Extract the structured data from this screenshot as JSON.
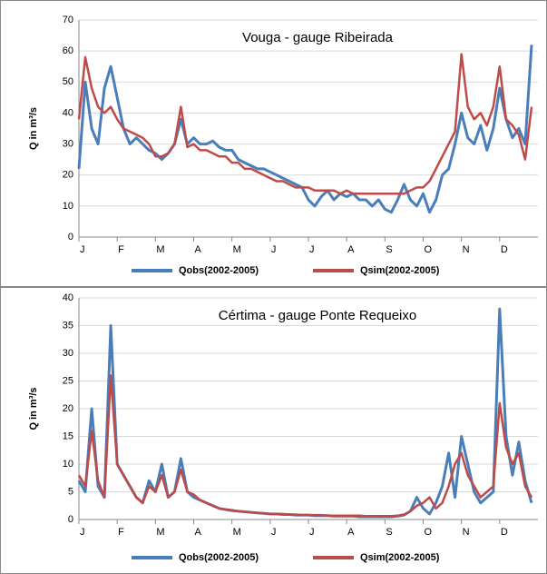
{
  "chart_data": [
    {
      "type": "line",
      "title": "Vouga - gauge Ribeirada",
      "y_label": "Q in m³/s",
      "categories": [
        "J",
        null,
        null,
        null,
        null,
        null,
        "F",
        null,
        null,
        null,
        null,
        null,
        "M",
        null,
        null,
        null,
        null,
        null,
        "A",
        null,
        null,
        null,
        null,
        null,
        "M",
        null,
        null,
        null,
        null,
        null,
        "J",
        null,
        null,
        null,
        null,
        null,
        "J",
        null,
        null,
        null,
        null,
        null,
        "A",
        null,
        null,
        null,
        null,
        null,
        "S",
        null,
        null,
        null,
        null,
        null,
        "O",
        null,
        null,
        null,
        null,
        null,
        "N",
        null,
        null,
        null,
        null,
        null,
        "D",
        null,
        null,
        null,
        null,
        null
      ],
      "series": [
        {
          "name": "Qobs(2002-2005)",
          "color": "#4a7ebb",
          "values": [
            22,
            50,
            35,
            30,
            48,
            55,
            45,
            35,
            30,
            32,
            30,
            28,
            27,
            25,
            27,
            30,
            38,
            30,
            32,
            30,
            30,
            31,
            29,
            28,
            28,
            25,
            24,
            23,
            22,
            22,
            21,
            20,
            19,
            18,
            17,
            16,
            12,
            10,
            13,
            15,
            12,
            14,
            13,
            14,
            12,
            12,
            10,
            12,
            9,
            8,
            12,
            17,
            12,
            10,
            14,
            8,
            12,
            20,
            22,
            30,
            40,
            32,
            30,
            36,
            28,
            35,
            48,
            38,
            32,
            35,
            30,
            62
          ]
        },
        {
          "name": "Qsim(2002-2005)",
          "color": "#be4b48",
          "values": [
            38,
            58,
            48,
            42,
            40,
            42,
            38,
            35,
            34,
            33,
            32,
            30,
            26,
            26,
            27,
            30,
            42,
            29,
            30,
            28,
            28,
            27,
            26,
            26,
            24,
            24,
            22,
            22,
            21,
            20,
            19,
            18,
            18,
            17,
            16,
            16,
            16,
            15,
            15,
            15,
            15,
            14,
            15,
            14,
            14,
            14,
            14,
            14,
            14,
            14,
            14,
            14,
            15,
            16,
            16,
            18,
            22,
            26,
            30,
            34,
            59,
            42,
            38,
            40,
            36,
            42,
            55,
            38,
            36,
            33,
            25,
            42
          ]
        }
      ],
      "ylim": [
        0,
        70
      ],
      "yticks": [
        0,
        10,
        20,
        30,
        40,
        50,
        60,
        70
      ],
      "grid": true
    },
    {
      "type": "line",
      "title": "Cértima  - gauge Ponte Requeixo",
      "y_label": "Q in m³/s",
      "categories": [
        "J",
        null,
        null,
        null,
        null,
        null,
        "F",
        null,
        null,
        null,
        null,
        null,
        "M",
        null,
        null,
        null,
        null,
        null,
        "A",
        null,
        null,
        null,
        null,
        null,
        "M",
        null,
        null,
        null,
        null,
        null,
        "J",
        null,
        null,
        null,
        null,
        null,
        "J",
        null,
        null,
        null,
        null,
        null,
        "A",
        null,
        null,
        null,
        null,
        null,
        "S",
        null,
        null,
        null,
        null,
        null,
        "O",
        null,
        null,
        null,
        null,
        null,
        "N",
        null,
        null,
        null,
        null,
        null,
        "D",
        null,
        null,
        null,
        null,
        null
      ],
      "series": [
        {
          "name": "Qobs(2002-2005)",
          "color": "#4a7ebb",
          "values": [
            7,
            5,
            20,
            6,
            4,
            35,
            10,
            8,
            6,
            4,
            3,
            7,
            5,
            10,
            4,
            5,
            11,
            5,
            4,
            3.5,
            3,
            2.5,
            2,
            1.8,
            1.6,
            1.5,
            1.4,
            1.3,
            1.2,
            1.1,
            1,
            1,
            0.9,
            0.9,
            0.8,
            0.8,
            0.8,
            0.7,
            0.7,
            0.7,
            0.6,
            0.6,
            0.6,
            0.6,
            0.5,
            0.5,
            0.5,
            0.5,
            0.5,
            0.5,
            0.6,
            0.8,
            1.5,
            4,
            2,
            1,
            3,
            6,
            12,
            4,
            15,
            10,
            5,
            3,
            4,
            5,
            38,
            15,
            8,
            14,
            7,
            3
          ]
        },
        {
          "name": "Qsim(2002-2005)",
          "color": "#be4b48",
          "values": [
            8,
            6,
            16,
            7,
            4,
            26,
            10,
            8,
            6,
            4,
            3,
            6,
            5,
            8,
            4,
            5,
            9,
            5,
            4.5,
            3.5,
            3,
            2.5,
            2,
            1.8,
            1.7,
            1.5,
            1.4,
            1.3,
            1.2,
            1.1,
            1,
            1,
            1,
            0.9,
            0.9,
            0.8,
            0.8,
            0.8,
            0.8,
            0.7,
            0.7,
            0.7,
            0.7,
            0.7,
            0.7,
            0.6,
            0.6,
            0.6,
            0.6,
            0.6,
            0.7,
            0.9,
            1.5,
            2.5,
            3,
            4,
            2,
            3,
            6,
            10,
            12,
            8,
            6,
            4,
            5,
            6,
            21,
            13,
            10,
            12,
            6,
            4
          ]
        }
      ],
      "ylim": [
        0,
        40
      ],
      "yticks": [
        0,
        5,
        10,
        15,
        20,
        25,
        30,
        35,
        40
      ],
      "grid": true
    }
  ]
}
